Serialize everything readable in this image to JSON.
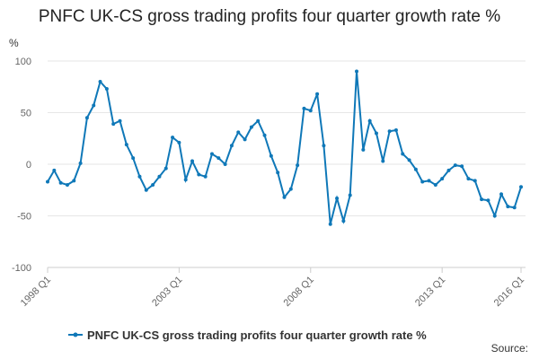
{
  "chart_data": {
    "type": "line",
    "title": "PNFC UK-CS gross trading profits four quarter growth rate %",
    "y_label": "%",
    "source": "Source:",
    "categories": [
      "1998 Q1",
      null,
      null,
      null,
      null,
      null,
      null,
      null,
      null,
      null,
      null,
      null,
      null,
      null,
      null,
      null,
      null,
      null,
      null,
      null,
      "2003 Q1",
      null,
      null,
      null,
      null,
      null,
      null,
      null,
      null,
      null,
      null,
      null,
      null,
      null,
      null,
      null,
      null,
      null,
      null,
      null,
      "2008 Q1",
      null,
      null,
      null,
      null,
      null,
      null,
      null,
      null,
      null,
      null,
      null,
      null,
      null,
      null,
      null,
      null,
      null,
      null,
      null,
      "2013 Q1",
      null,
      null,
      null,
      null,
      null,
      null,
      null,
      null,
      null,
      null,
      null,
      "2016 Q1"
    ],
    "series": [
      {
        "name": "PNFC UK-CS gross trading profits four quarter growth rate %",
        "color": "#0f78b8",
        "values": [
          -17,
          -6,
          -18,
          -20,
          -16,
          1,
          45,
          57,
          80,
          73,
          39,
          42,
          19,
          6,
          -12,
          -25,
          -20,
          -12,
          -4,
          26,
          21,
          -15,
          3,
          -10,
          -12,
          10,
          6,
          0,
          18,
          31,
          24,
          36,
          42,
          28,
          8,
          -8,
          -32,
          -24,
          -1,
          54,
          52,
          68,
          18,
          -58,
          -33,
          -55,
          -30,
          90,
          14,
          42,
          30,
          3,
          32,
          33,
          10,
          4,
          -5,
          -17,
          -16,
          -20,
          -14,
          -6,
          -1,
          -2,
          -14,
          -16,
          -34,
          -35,
          -50,
          -29,
          -41,
          -42,
          -22
        ]
      }
    ],
    "ylim": [
      -100,
      100
    ],
    "yticks": [
      -100,
      -50,
      0,
      50,
      100
    ],
    "grid": true
  }
}
